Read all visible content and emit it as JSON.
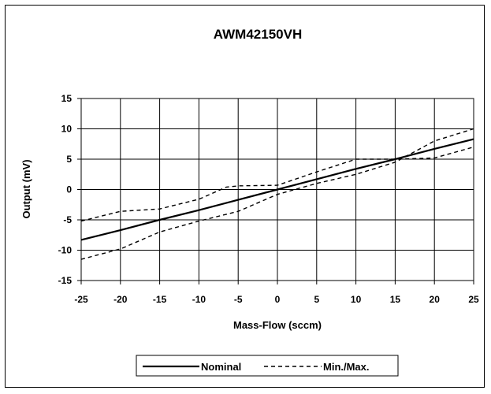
{
  "chart_data": {
    "type": "line",
    "title": "AWM42150VH",
    "xlabel": "Mass-Flow (sccm)",
    "ylabel": "Output (mV)",
    "xlim": [
      -25,
      25
    ],
    "ylim": [
      -15,
      15
    ],
    "xticks": [
      -25,
      -20,
      -15,
      -10,
      -5,
      0,
      5,
      10,
      15,
      20,
      25
    ],
    "yticks": [
      -15,
      -10,
      -5,
      0,
      5,
      10,
      15
    ],
    "grid": true,
    "legend": {
      "placement": "bottom",
      "items": [
        "Nominal",
        "Min./Max."
      ]
    },
    "series": [
      {
        "name": "Nominal",
        "style": "solid",
        "color": "#000000",
        "x": [
          -25,
          -20,
          -15,
          -10,
          -5,
          0,
          5,
          10,
          15,
          20,
          25
        ],
        "y": [
          -8.3,
          -6.7,
          -5,
          -3.4,
          -1.7,
          0,
          1.7,
          3.4,
          5,
          6.7,
          8.3
        ]
      },
      {
        "name": "Min./Max.",
        "style": "dashed",
        "color": "#000000",
        "x": [
          -25,
          -20,
          -15,
          -10,
          -6.5,
          -5,
          0,
          5,
          10,
          15,
          20,
          25
        ],
        "y": [
          -5.2,
          -3.6,
          -3.2,
          -1.6,
          0.4,
          0.6,
          0.7,
          2.9,
          5,
          5,
          5.2,
          7
        ]
      },
      {
        "name": "Min./Max.",
        "style": "dashed",
        "color": "#000000",
        "x": [
          -25,
          -20,
          -15,
          -10,
          -5,
          0,
          5,
          10,
          15,
          20,
          25
        ],
        "y": [
          -11.5,
          -9.8,
          -7,
          -5.2,
          -3.6,
          -0.8,
          1,
          2.5,
          4.5,
          8,
          10
        ]
      }
    ]
  }
}
